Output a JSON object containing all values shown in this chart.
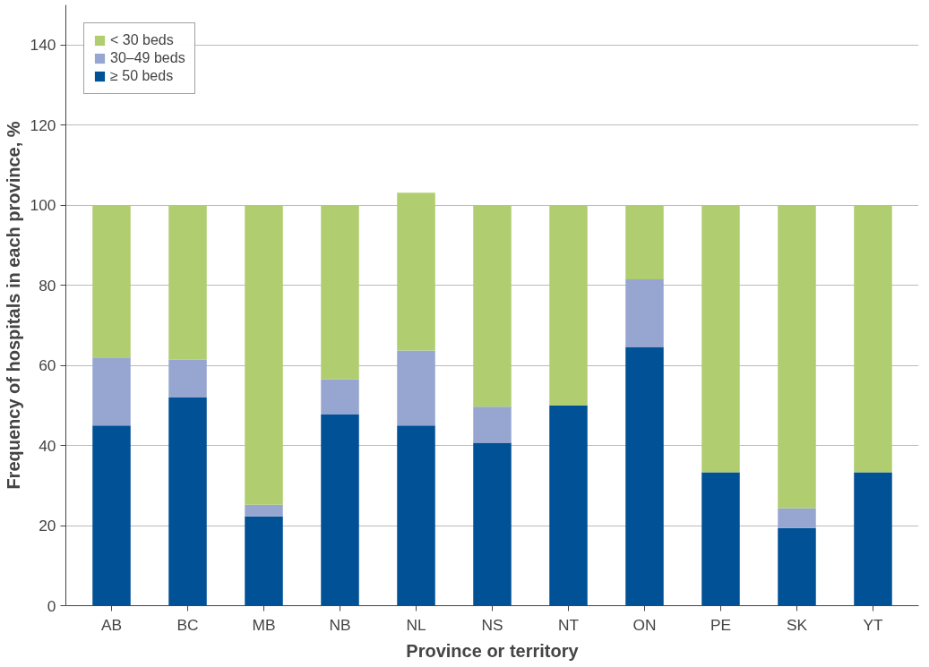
{
  "chart_data": {
    "type": "bar",
    "stacked": true,
    "xlabel": "Province or territory",
    "ylabel": "Frequency of hospitals in each province, %",
    "categories": [
      "AB",
      "BC",
      "MB",
      "NB",
      "NL",
      "NS",
      "NT",
      "ON",
      "PE",
      "SK",
      "YT"
    ],
    "series": [
      {
        "name": "≥ 50 beds",
        "color": "#005195",
        "values": [
          45,
          52,
          22.3,
          47.7,
          45,
          40.7,
          50,
          64.6,
          33.3,
          19.4,
          33.3
        ]
      },
      {
        "name": "30–49 beds",
        "color": "#96a6d0",
        "values": [
          17,
          9.5,
          2.9,
          8.8,
          18.7,
          9,
          0,
          16.9,
          0,
          4.9,
          0
        ]
      },
      {
        "name": "< 30 beds",
        "color": "#b0cd6f",
        "values": [
          38,
          38.5,
          74.8,
          43.5,
          39.4,
          50.3,
          50,
          18.5,
          66.7,
          75.7,
          66.7
        ]
      }
    ],
    "ylim": [
      0,
      150
    ],
    "yticks": [
      0,
      20,
      40,
      60,
      80,
      100,
      120,
      140
    ],
    "grid": "y",
    "legend": "top left"
  }
}
